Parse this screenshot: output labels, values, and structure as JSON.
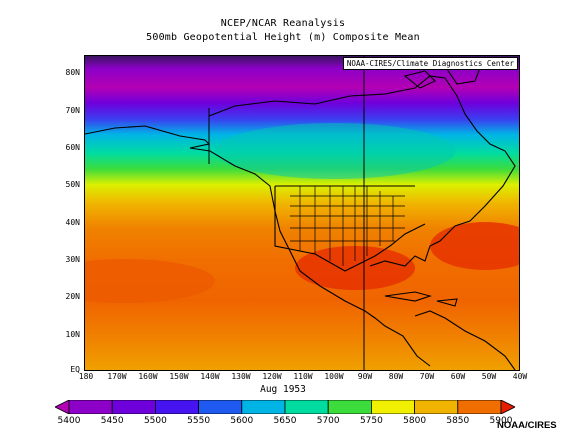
{
  "title": "NCEP/NCAR Reanalysis",
  "subtitle": "500mb Geopotential Height (m) Composite Mean",
  "credit": "NOAA-CIRES/Climate Diagnostics Center",
  "date_label": "Aug 1953",
  "source": "NOAA/CIRES",
  "chart_data": {
    "type": "heatmap",
    "title": "500mb Geopotential Height (m) Composite Mean",
    "xlim": [
      -180,
      -40
    ],
    "ylim": [
      0,
      85
    ],
    "lat_ticks": [
      "80N",
      "70N",
      "60N",
      "50N",
      "40N",
      "30N",
      "20N",
      "10N",
      "EQ"
    ],
    "lon_ticks": [
      "180",
      "170W",
      "160W",
      "150W",
      "140W",
      "130W",
      "120W",
      "110W",
      "100W",
      "90W",
      "80W",
      "70W",
      "60W",
      "50W",
      "40W"
    ],
    "colorbar_levels": [
      "5400",
      "5450",
      "5500",
      "5550",
      "5600",
      "5650",
      "5700",
      "5750",
      "5800",
      "5850",
      "5900"
    ],
    "colorbar_colors": [
      "#b400b4",
      "#8c00c8",
      "#6e00dc",
      "#4614f0",
      "#1e5af0",
      "#00b4e6",
      "#00dca0",
      "#3cdc3c",
      "#f0f000",
      "#f0b400",
      "#f06e00",
      "#e61e00"
    ]
  }
}
